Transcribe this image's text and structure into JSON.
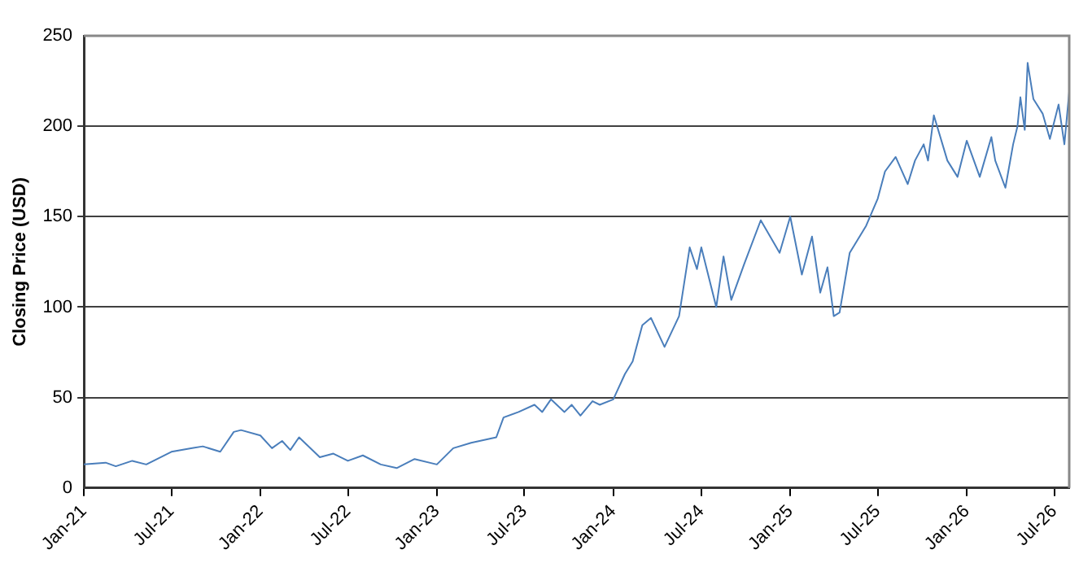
{
  "chart_data": {
    "type": "line",
    "ylabel": "Closing Price (USD)",
    "xlim": [
      "2021-01-01",
      "2026-08-01"
    ],
    "xticks": [
      {
        "value": "2021-01-01",
        "label": "Jan-21"
      },
      {
        "value": "2021-07-01",
        "label": "Jul-21"
      },
      {
        "value": "2022-01-01",
        "label": "Jan-22"
      },
      {
        "value": "2022-07-01",
        "label": "Jul-22"
      },
      {
        "value": "2023-01-01",
        "label": "Jan-23"
      },
      {
        "value": "2023-07-01",
        "label": "Jul-23"
      },
      {
        "value": "2024-01-01",
        "label": "Jan-24"
      },
      {
        "value": "2024-07-01",
        "label": "Jul-24"
      },
      {
        "value": "2025-01-01",
        "label": "Jan-25"
      },
      {
        "value": "2025-07-01",
        "label": "Jul-25"
      },
      {
        "value": "2026-01-01",
        "label": "Jan-26"
      },
      {
        "value": "2026-07-01",
        "label": "Jul-26"
      }
    ],
    "ylim": [
      0,
      250
    ],
    "yticks": [
      0,
      50,
      100,
      150,
      200,
      250
    ],
    "grid": "y",
    "x": [
      "2021-01-01",
      "2021-02-15",
      "2021-03-08",
      "2021-04-11",
      "2021-05-10",
      "2021-07-01",
      "2021-08-13",
      "2021-09-04",
      "2021-10-10",
      "2021-11-07",
      "2021-11-22",
      "2022-01-01",
      "2022-01-25",
      "2022-02-15",
      "2022-03-04",
      "2022-03-22",
      "2022-05-04",
      "2022-06-01",
      "2022-07-01",
      "2022-08-01",
      "2022-09-07",
      "2022-10-10",
      "2022-11-16",
      "2023-01-01",
      "2023-02-04",
      "2023-03-13",
      "2023-05-04",
      "2023-05-19",
      "2023-06-19",
      "2023-07-22",
      "2023-08-07",
      "2023-08-25",
      "2023-09-22",
      "2023-10-07",
      "2023-10-25",
      "2023-11-19",
      "2023-12-04",
      "2024-01-01",
      "2024-01-25",
      "2024-02-10",
      "2024-03-01",
      "2024-03-19",
      "2024-04-16",
      "2024-05-16",
      "2024-06-07",
      "2024-06-22",
      "2024-07-01",
      "2024-08-01",
      "2024-08-16",
      "2024-09-01",
      "2024-09-28",
      "2024-11-01",
      "2024-12-10",
      "2025-01-01",
      "2025-01-25",
      "2025-02-15",
      "2025-03-04",
      "2025-03-19",
      "2025-04-01",
      "2025-04-13",
      "2025-05-04",
      "2025-06-07",
      "2025-07-01",
      "2025-07-16",
      "2025-08-07",
      "2025-09-01",
      "2025-09-16",
      "2025-10-04",
      "2025-10-13",
      "2025-10-25",
      "2025-11-22",
      "2025-12-13",
      "2026-01-01",
      "2026-01-28",
      "2026-02-21",
      "2026-03-01",
      "2026-03-22",
      "2026-04-07",
      "2026-04-16",
      "2026-04-22",
      "2026-05-01",
      "2026-05-07",
      "2026-05-19",
      "2026-06-07",
      "2026-06-22",
      "2026-07-10",
      "2026-07-22",
      "2026-08-01"
    ],
    "series": [
      {
        "color": "#4a7ebb",
        "values": [
          13,
          14,
          12,
          15,
          13,
          20,
          22,
          23,
          20,
          31,
          32,
          29,
          22,
          26,
          21,
          28,
          17,
          19,
          15,
          18,
          13,
          11,
          16,
          13,
          22,
          25,
          28,
          39,
          42,
          46,
          42,
          49,
          42,
          46,
          40,
          48,
          46,
          49,
          63,
          70,
          90,
          94,
          78,
          95,
          133,
          121,
          133,
          100,
          128,
          104,
          124,
          148,
          130,
          150,
          118,
          139,
          108,
          122,
          95,
          97,
          130,
          145,
          160,
          175,
          183,
          168,
          181,
          190,
          181,
          206,
          181,
          172,
          192,
          172,
          194,
          181,
          166,
          190,
          200,
          216,
          198,
          235,
          215,
          207,
          193,
          212,
          190,
          219
        ]
      }
    ]
  }
}
